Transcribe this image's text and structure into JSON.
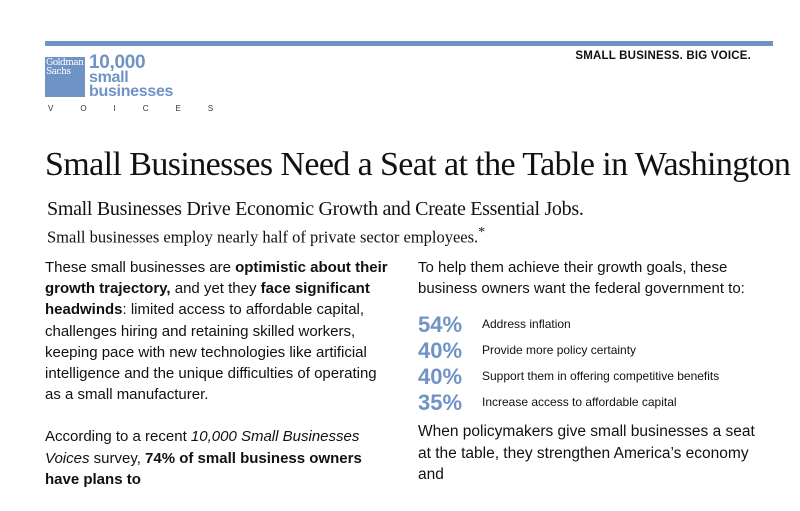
{
  "header": {
    "tagline": "SMALL BUSINESS. BIG VOICE.",
    "logo_box": "Goldman Sachs",
    "logo_lines": [
      "10,000",
      "small",
      "businesses"
    ],
    "voices": "VOICES",
    "accent": "#6f93c5"
  },
  "title": "Small Businesses Need a Seat at the Table in Washington",
  "subtitle": "Small Businesses Drive Economic Growth and Create Essential Jobs.",
  "subsubtitle": "Small businesses employ nearly half of private sector employees.",
  "footnote_mark": "*",
  "left": {
    "p1": [
      "These small businesses are ",
      "optimistic about their growth trajectory,",
      " and yet they ",
      "face significant headwinds",
      ": limited access to affordable capital, challenges hiring and retaining skilled workers, keeping pace with new technologies like artificial intelligence and the unique difficulties of operating as a small manufacturer."
    ],
    "p2": [
      "According to a recent ",
      "10,000 Small Businesses Voices",
      " survey, ",
      "74% of small business owners have plans to"
    ]
  },
  "right": {
    "intro": "To help them achieve their growth goals, these business owners want the federal government to:",
    "stats": [
      {
        "pct": "54%",
        "text": "Address inflation"
      },
      {
        "pct": "40%",
        "text": "Provide more policy certainty"
      },
      {
        "pct": "40%",
        "text": "Support them in offering competitive benefits"
      },
      {
        "pct": "35%",
        "text": "Increase access to affordable capital"
      }
    ],
    "closing": "When policymakers give small businesses a seat at the table, they strengthen America’s economy and"
  }
}
